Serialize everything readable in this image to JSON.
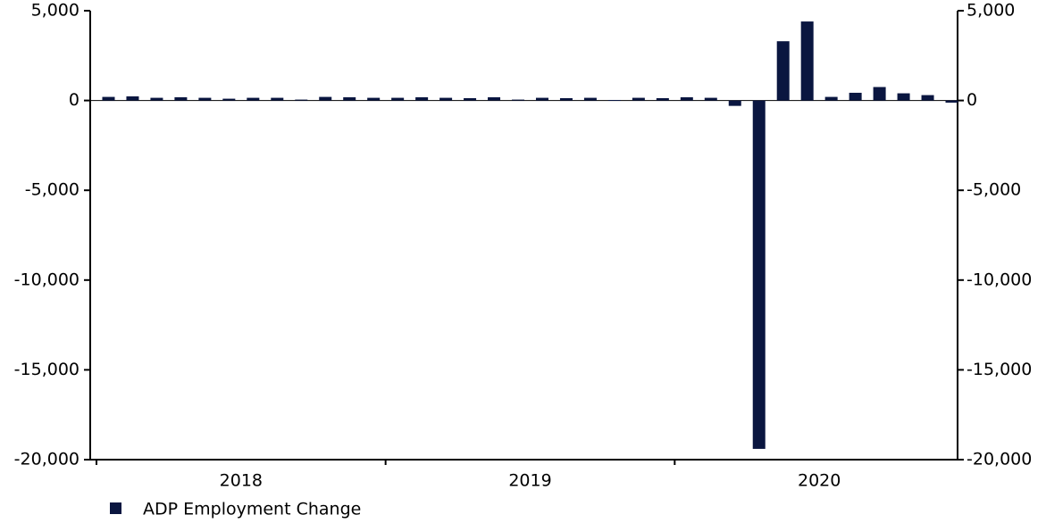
{
  "chart_data": {
    "type": "bar",
    "categories": [
      null,
      null,
      null,
      null,
      null,
      null,
      null,
      null,
      null,
      null,
      null,
      null,
      null,
      null,
      null,
      null,
      null,
      null,
      null,
      null,
      null,
      null,
      null,
      null,
      null,
      null,
      null,
      null,
      null,
      null,
      null,
      null,
      null,
      null,
      null,
      null
    ],
    "year_labels": [
      "2018",
      "2019",
      "2020"
    ],
    "series": [
      {
        "name": "ADP Employment Change",
        "color": "#0a1640",
        "values": [
          200,
          230,
          150,
          180,
          150,
          100,
          150,
          150,
          50,
          200,
          180,
          150,
          150,
          180,
          150,
          130,
          180,
          50,
          150,
          130,
          150,
          30,
          150,
          130,
          180,
          150,
          -300,
          -19400,
          3300,
          4400,
          200,
          430,
          750,
          400,
          300,
          -120
        ]
      }
    ],
    "ylim": [
      -20000,
      5000
    ],
    "yticks": [
      {
        "value": -20000,
        "label": "-20,000"
      },
      {
        "value": -15000,
        "label": "-15,000"
      },
      {
        "value": -10000,
        "label": "-10,000"
      },
      {
        "value": -5000,
        "label": "-5,000"
      },
      0,
      {
        "value": 5000,
        "label": "5,000"
      }
    ],
    "y2lim": [
      -20000,
      5000
    ],
    "y2ticks": [
      {
        "value": -20000,
        "label": "-20,000"
      },
      {
        "value": -15000,
        "label": "-15,000"
      },
      {
        "value": -10000,
        "label": "-10,000"
      },
      {
        "value": -5000,
        "label": "-5,000"
      },
      0,
      {
        "value": 5000,
        "label": "5,000"
      }
    ],
    "legend": "bottom-left"
  }
}
